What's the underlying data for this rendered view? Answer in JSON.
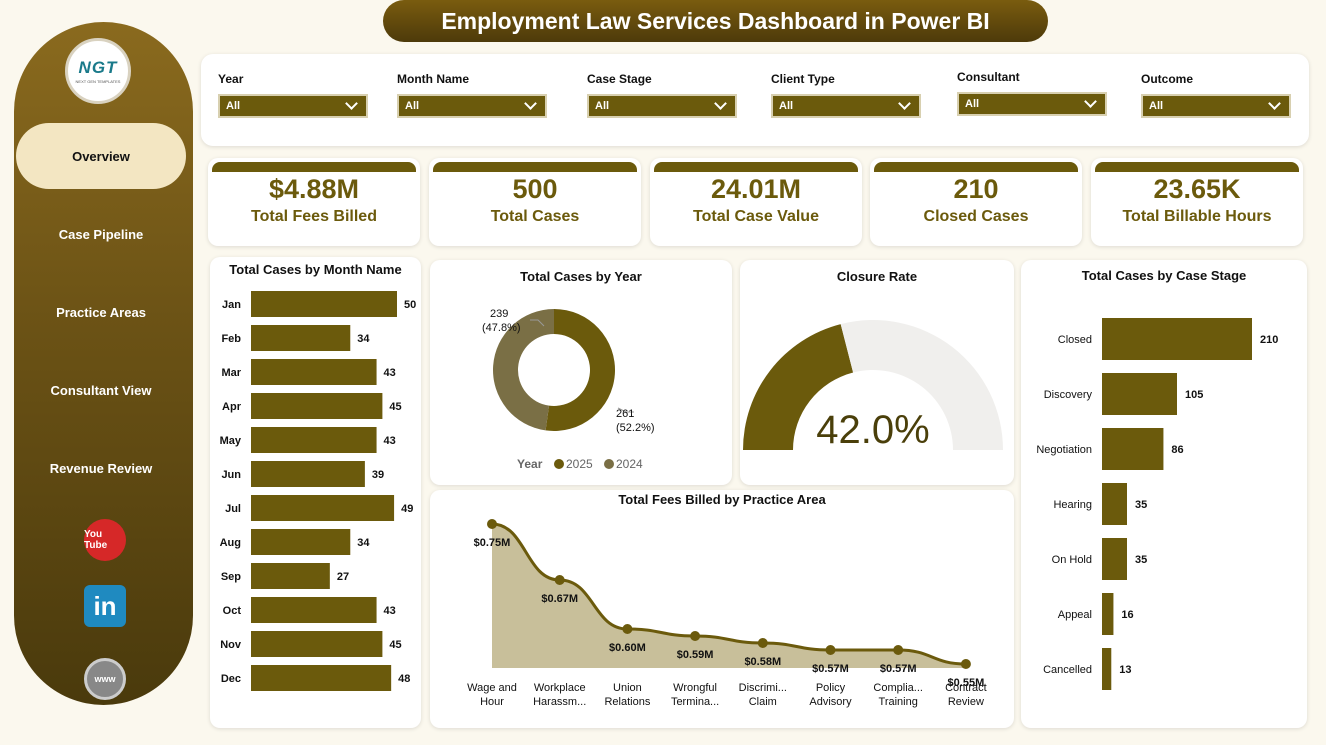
{
  "title": "Employment Law Services Dashboard in Power BI",
  "logo": {
    "text": "NGT",
    "subtitle": "NEXT GEN TEMPLATES"
  },
  "nav": [
    {
      "label": "Overview",
      "active": true
    },
    {
      "label": "Case Pipeline",
      "active": false
    },
    {
      "label": "Practice Areas",
      "active": false
    },
    {
      "label": "Consultant View",
      "active": false
    },
    {
      "label": "Revenue Review",
      "active": false
    }
  ],
  "social": {
    "youtube": "You Tube",
    "linkedin": "in",
    "web": "www"
  },
  "filters": [
    {
      "label": "Year",
      "value": "All"
    },
    {
      "label": "Month Name",
      "value": "All"
    },
    {
      "label": "Case Stage",
      "value": "All"
    },
    {
      "label": "Client Type",
      "value": "All"
    },
    {
      "label": "Consultant",
      "value": "All"
    },
    {
      "label": "Outcome",
      "value": "All"
    }
  ],
  "kpis": [
    {
      "value": "$4.88M",
      "label": "Total Fees Billed"
    },
    {
      "value": "500",
      "label": "Total Cases"
    },
    {
      "value": "24.01M",
      "label": "Total Case Value"
    },
    {
      "value": "210",
      "label": "Closed Cases"
    },
    {
      "value": "23.65K",
      "label": "Total Billable Hours"
    }
  ],
  "colors": {
    "primary": "#6b5a0c",
    "secondary": "#7a6f45",
    "area": "#c8bf9a",
    "gauge_bg": "#f0efed"
  },
  "chart_data": [
    {
      "id": "month",
      "type": "bar",
      "title": "Total Cases by Month Name",
      "orientation": "horizontal",
      "categories": [
        "Jan",
        "Feb",
        "Mar",
        "Apr",
        "May",
        "Jun",
        "Jul",
        "Aug",
        "Sep",
        "Oct",
        "Nov",
        "Dec"
      ],
      "values": [
        50,
        34,
        43,
        45,
        43,
        39,
        49,
        34,
        27,
        43,
        45,
        48
      ],
      "labels": [
        "50",
        "34",
        "43",
        "45",
        "43",
        "39",
        "49",
        "34",
        "27",
        "43",
        "45",
        "48"
      ],
      "xlim": [
        0,
        50
      ]
    },
    {
      "id": "year",
      "type": "pie",
      "title": "Total Cases by Year",
      "legend_title": "Year",
      "categories": [
        "2025",
        "2024"
      ],
      "values": [
        261,
        239
      ],
      "labels": [
        "261",
        "239"
      ],
      "percent_labels": [
        "(52.2%)",
        "(47.8%)"
      ]
    },
    {
      "id": "closure",
      "type": "gauge",
      "title": "Closure Rate",
      "value": 42.0,
      "label": "42.0%",
      "max": 100
    },
    {
      "id": "stage",
      "type": "bar",
      "title": "Total Cases by Case Stage",
      "orientation": "horizontal",
      "categories": [
        "Closed",
        "Discovery",
        "Negotiation",
        "Hearing",
        "On Hold",
        "Appeal",
        "Cancelled"
      ],
      "values": [
        210,
        105,
        86,
        35,
        35,
        16,
        13
      ],
      "labels": [
        "210",
        "105",
        "86",
        "35",
        "35",
        "16",
        "13"
      ],
      "xlim": [
        0,
        210
      ]
    },
    {
      "id": "practice",
      "type": "area",
      "title": "Total Fees Billed by Practice Area",
      "categories": [
        [
          "Wage and",
          "Hour"
        ],
        [
          "Workplace",
          "Harassm..."
        ],
        [
          "Union",
          "Relations"
        ],
        [
          "Wrongful",
          "Termina..."
        ],
        [
          "Discrimi...",
          "Claim"
        ],
        [
          "Policy",
          "Advisory"
        ],
        [
          "Complia...",
          "Training"
        ],
        [
          "Contract",
          "Review"
        ]
      ],
      "values": [
        0.75,
        0.67,
        0.6,
        0.59,
        0.58,
        0.57,
        0.57,
        0.55
      ],
      "labels": [
        "$0.75M",
        "$0.67M",
        "$0.60M",
        "$0.59M",
        "$0.58M",
        "$0.57M",
        "$0.57M",
        "$0.55M"
      ],
      "unit": "$M"
    }
  ]
}
